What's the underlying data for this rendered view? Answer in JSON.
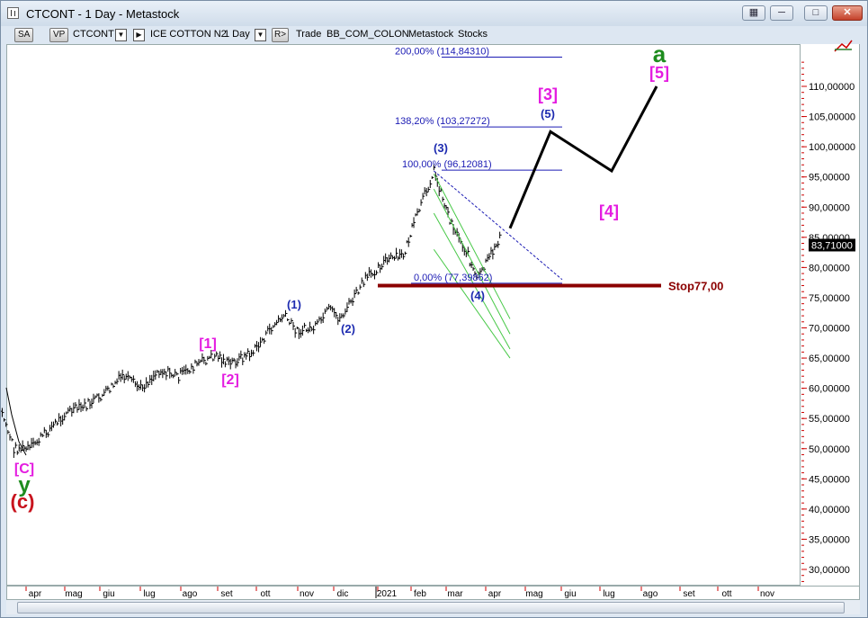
{
  "window": {
    "title": "CTCONT - 1 Day - Metastock"
  },
  "toolbar": {
    "sa": "SA",
    "vp": "VP",
    "symbol": "CTCONT",
    "name": "ICE COTTON N2",
    "period": "1 Day",
    "r": "R>",
    "trade": "Trade",
    "feed": "BB_COM_COLON",
    "source": "Metastock",
    "type": "Stocks"
  },
  "colors": {
    "pink": "#e41ce0",
    "blue": "#1d2bb0",
    "green": "#1e8c1e",
    "red": "#c8141e",
    "stop": "#8b0000",
    "fib": "#1b1bb4"
  },
  "icons": [
    "app-icon",
    "minimize-icon",
    "restore-icon",
    "close-icon",
    "drawing-tools-icon"
  ],
  "chart_data": {
    "type": "line",
    "title": "CTCONT - 1 Day - Metastock",
    "y_axis": {
      "ticks": [
        "30,00000",
        "35,00000",
        "40,00000",
        "45,00000",
        "50,00000",
        "55,00000",
        "60,00000",
        "65,00000",
        "70,00000",
        "75,00000",
        "80,00000",
        "85,00000",
        "90,00000",
        "95,00000",
        "100,00000",
        "105,00000",
        "110,00000"
      ],
      "range": [
        27.5,
        115
      ]
    },
    "x_axis": {
      "ticks": [
        "apr",
        "mag",
        "giu",
        "lug",
        "ago",
        "set",
        "ott",
        "nov",
        "dic",
        "2021",
        "feb",
        "mar",
        "apr",
        "mag",
        "giu",
        "lug",
        "ago",
        "set",
        "ott",
        "nov"
      ]
    },
    "last_price": "83,71000",
    "price_series": [
      {
        "x": "2020-03-01",
        "y": 59
      },
      {
        "x": "2020-03-10",
        "y": 55
      },
      {
        "x": "2020-03-18",
        "y": 50
      },
      {
        "x": "2020-03-31",
        "y": 50
      },
      {
        "x": "2020-04-15",
        "y": 53
      },
      {
        "x": "2020-04-30",
        "y": 56
      },
      {
        "x": "2020-05-15",
        "y": 57
      },
      {
        "x": "2020-05-31",
        "y": 59
      },
      {
        "x": "2020-06-15",
        "y": 62
      },
      {
        "x": "2020-06-30",
        "y": 60
      },
      {
        "x": "2020-07-15",
        "y": 63
      },
      {
        "x": "2020-07-31",
        "y": 62
      },
      {
        "x": "2020-08-15",
        "y": 64
      },
      {
        "x": "2020-08-31",
        "y": 65.5
      },
      {
        "x": "2020-09-10",
        "y": 64
      },
      {
        "x": "2020-09-30",
        "y": 66
      },
      {
        "x": "2020-10-15",
        "y": 70
      },
      {
        "x": "2020-10-25",
        "y": 72
      },
      {
        "x": "2020-11-05",
        "y": 69.5
      },
      {
        "x": "2020-11-20",
        "y": 70
      },
      {
        "x": "2020-12-01",
        "y": 73
      },
      {
        "x": "2020-12-10",
        "y": 71.5
      },
      {
        "x": "2020-12-31",
        "y": 78
      },
      {
        "x": "2021-01-15",
        "y": 81
      },
      {
        "x": "2021-01-31",
        "y": 82
      },
      {
        "x": "2021-02-10",
        "y": 88
      },
      {
        "x": "2021-02-25",
        "y": 96
      },
      {
        "x": "2021-03-10",
        "y": 88
      },
      {
        "x": "2021-03-25",
        "y": 82
      },
      {
        "x": "2021-04-01",
        "y": 78
      },
      {
        "x": "2021-04-10",
        "y": 81
      },
      {
        "x": "2021-04-20",
        "y": 85
      },
      {
        "x": "2021-04-21",
        "y": 83.71
      }
    ],
    "projection": [
      {
        "x": "2021-04-25",
        "y": 86.5
      },
      {
        "x": "2021-05-25",
        "y": 102.5
      },
      {
        "x": "2021-07-05",
        "y": 96
      },
      {
        "x": "2021-08-20",
        "y": 110
      }
    ],
    "fib_levels": [
      {
        "label": "200,00% (114,84310)",
        "value": 114.8431
      },
      {
        "label": "138,20% (103,27272)",
        "value": 103.27272
      },
      {
        "label": "100,00% (96,12081)",
        "value": 96.12081
      },
      {
        "label": "0,00% (77,39862)",
        "value": 77.39862
      }
    ],
    "stop": {
      "label": "Stop77,00",
      "value": 77.0
    },
    "wave_labels": {
      "c_bracket": "[C]",
      "y": "y",
      "c_paren": "(c)",
      "w1_bracket": "[1]",
      "w2_bracket": "[2]",
      "w1": "(1)",
      "w2": "(2)",
      "w3": "(3)",
      "w4": "(4)",
      "w5": "(5)",
      "w3_bracket": "[3]",
      "w4_bracket": "[4]",
      "w5_bracket": "[5]",
      "a": "a"
    }
  }
}
